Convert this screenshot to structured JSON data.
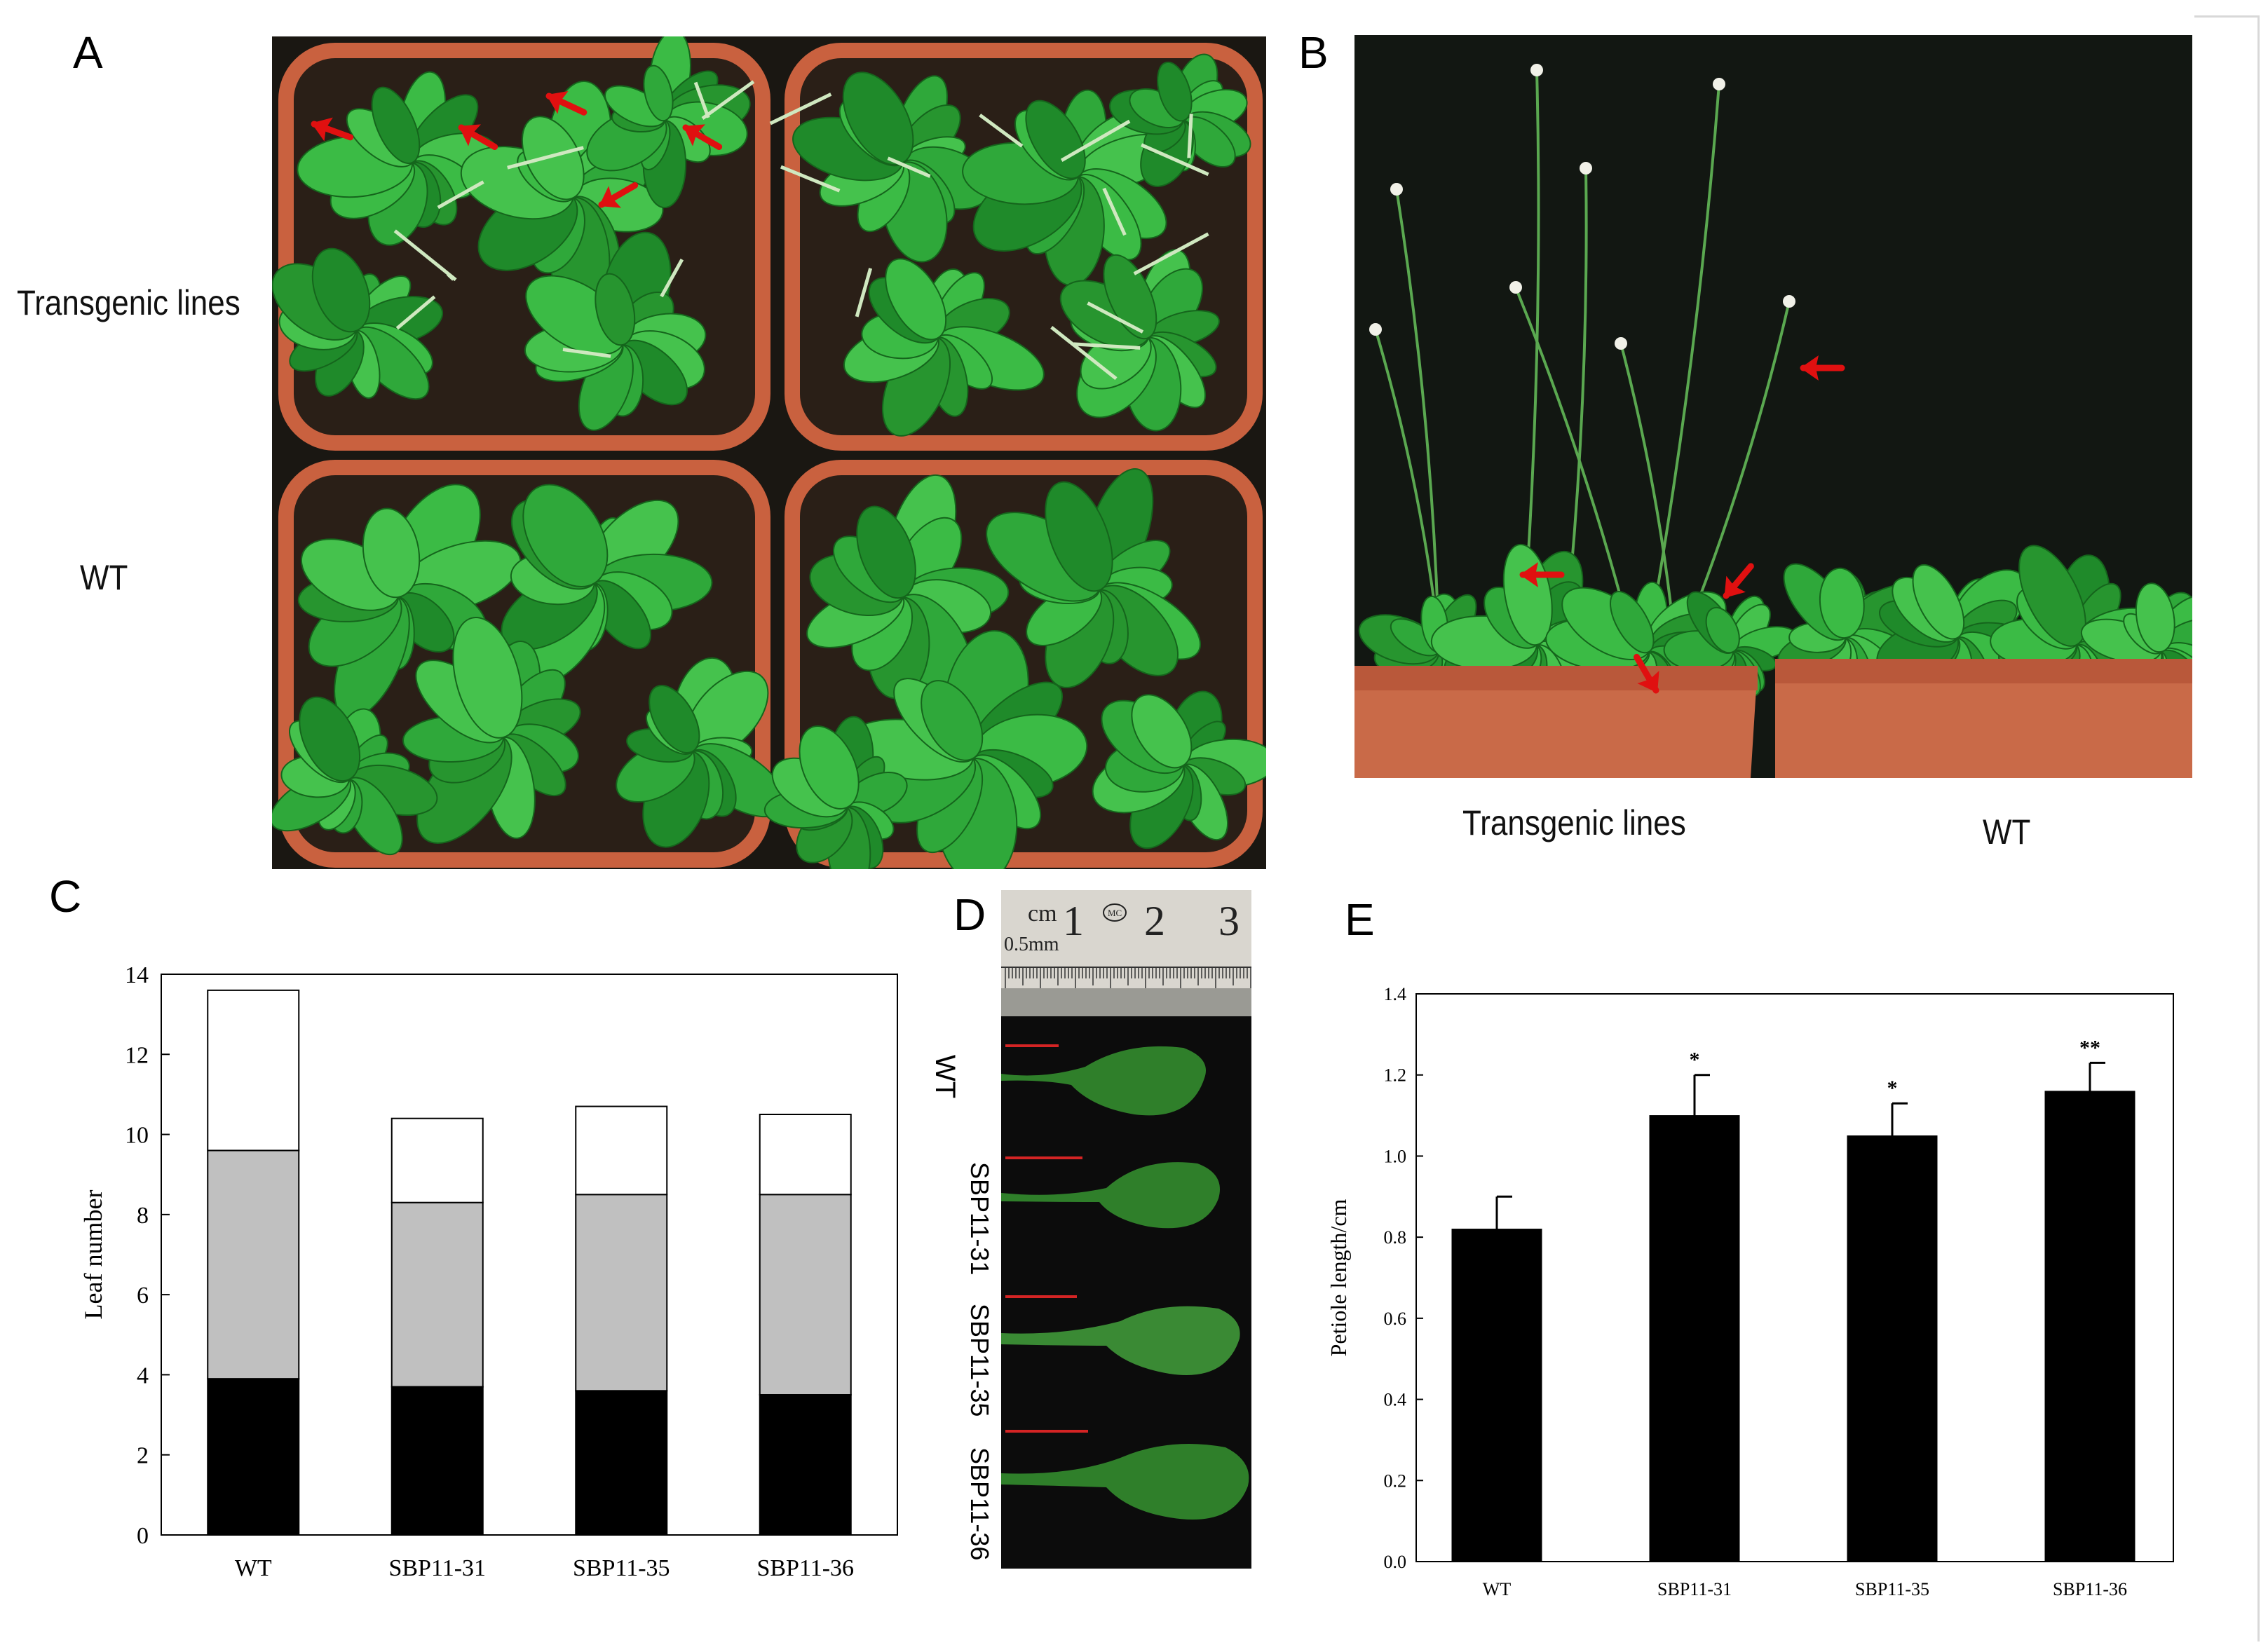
{
  "panels": {
    "a": {
      "letter": "A",
      "row_labels": [
        "Transgenic lines",
        "WT"
      ]
    },
    "b": {
      "letter": "B",
      "col_labels": [
        "Transgenic lines",
        "WT"
      ]
    },
    "c": {
      "letter": "C"
    },
    "d": {
      "letter": "D",
      "ruler_unit": "cm",
      "ruler_numbers": [
        "1",
        "2",
        "3"
      ],
      "ruler_mark": "MC",
      "ruler_sub": "0.5mm",
      "leaf_labels": [
        "WT",
        "SBP11-31",
        "SBP11-35",
        "SBP11-36"
      ]
    },
    "e": {
      "letter": "E"
    }
  },
  "colors": {
    "photo_dark": "#151a12",
    "pot": "#c9613f",
    "leaf": "#2fa83a",
    "arrow": "#e01010",
    "bar_bottom": "#000000",
    "bar_middle": "#c0c0c0",
    "bar_top": "#ffffff"
  },
  "chart_data": [
    {
      "type": "bar",
      "stacked": true,
      "title": "",
      "xlabel": "",
      "ylabel": "Leaf  number",
      "ylim": [
        0,
        14
      ],
      "yticks": [
        "0",
        "2",
        "4",
        "6",
        "8",
        "10",
        "12",
        "14"
      ],
      "categories": [
        "WT",
        "SBP11-31",
        "SBP11-35",
        "SBP11-36"
      ],
      "series": [
        {
          "values": [
            3.9,
            3.7,
            3.6,
            3.5
          ],
          "color": "#000000"
        },
        {
          "values": [
            5.7,
            4.6,
            4.9,
            5.0
          ],
          "color": "#c0c0c0"
        },
        {
          "values": [
            4.0,
            2.1,
            2.2,
            2.0
          ],
          "color": "#ffffff"
        }
      ],
      "totals": [
        13.6,
        10.4,
        10.7,
        10.5
      ],
      "grid": false
    },
    {
      "type": "bar",
      "title": "",
      "xlabel": "",
      "ylabel": "Petiole length/cm",
      "ylim": [
        0,
        1.4
      ],
      "yticks": [
        "0.0",
        "0.2",
        "0.4",
        "0.6",
        "0.8",
        "1.0",
        "1.2",
        "1.4"
      ],
      "categories": [
        "WT",
        "SBP11-31",
        "SBP11-35",
        "SBP11-36"
      ],
      "values": [
        0.82,
        1.1,
        1.05,
        1.16
      ],
      "errors": [
        0.08,
        0.1,
        0.08,
        0.07
      ],
      "significance": [
        "",
        "*",
        "*",
        "**"
      ],
      "grid": false
    }
  ]
}
